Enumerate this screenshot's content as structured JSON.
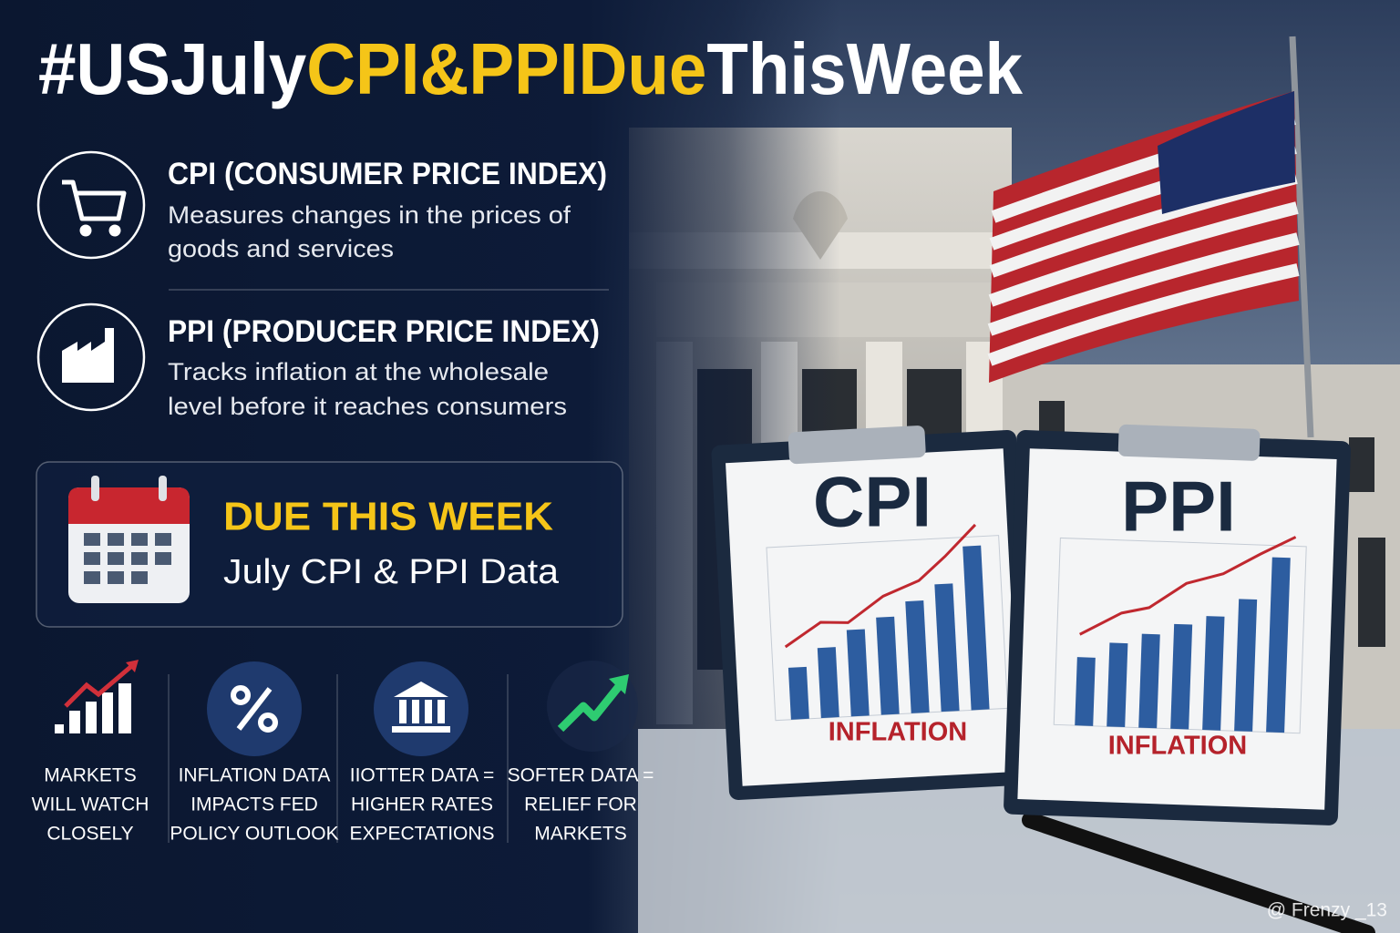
{
  "title": {
    "parts": [
      "#USJuly",
      "CPI&PPIDue",
      "ThisWeek"
    ]
  },
  "indicators": [
    {
      "heading": "CPI (CONSUMER PRICE INDEX)",
      "description": [
        "Measures changes in the prices of",
        "goods and services"
      ]
    },
    {
      "heading": "PPI (PRODUCER PRICE INDEX)",
      "description": [
        "Tracks inflation at the wholesale",
        "level before it reaches consumers"
      ]
    }
  ],
  "due": {
    "heading": "DUE THIS WEEK",
    "subheading": "July CPI & PPI Data"
  },
  "points": [
    {
      "lines": [
        "MARKETS",
        "WILL WATCH",
        "CLOSELY"
      ]
    },
    {
      "lines": [
        "INFLATION DATA",
        "IMPACTS FED",
        "POLICY OUTLOOK"
      ]
    },
    {
      "lines": [
        "IIOTTER DATA =",
        "HIGHER RATES",
        "EXPECTATIONS"
      ]
    },
    {
      "lines": [
        "SOFTER DATA =",
        "RELIEF FOR",
        "MARKETS"
      ]
    }
  ],
  "clipboards": [
    {
      "label": "CPI",
      "caption": "INFLATION"
    },
    {
      "label": "PPI",
      "caption": "INFLATION"
    }
  ],
  "watermark": "@ Frenzy _13"
}
